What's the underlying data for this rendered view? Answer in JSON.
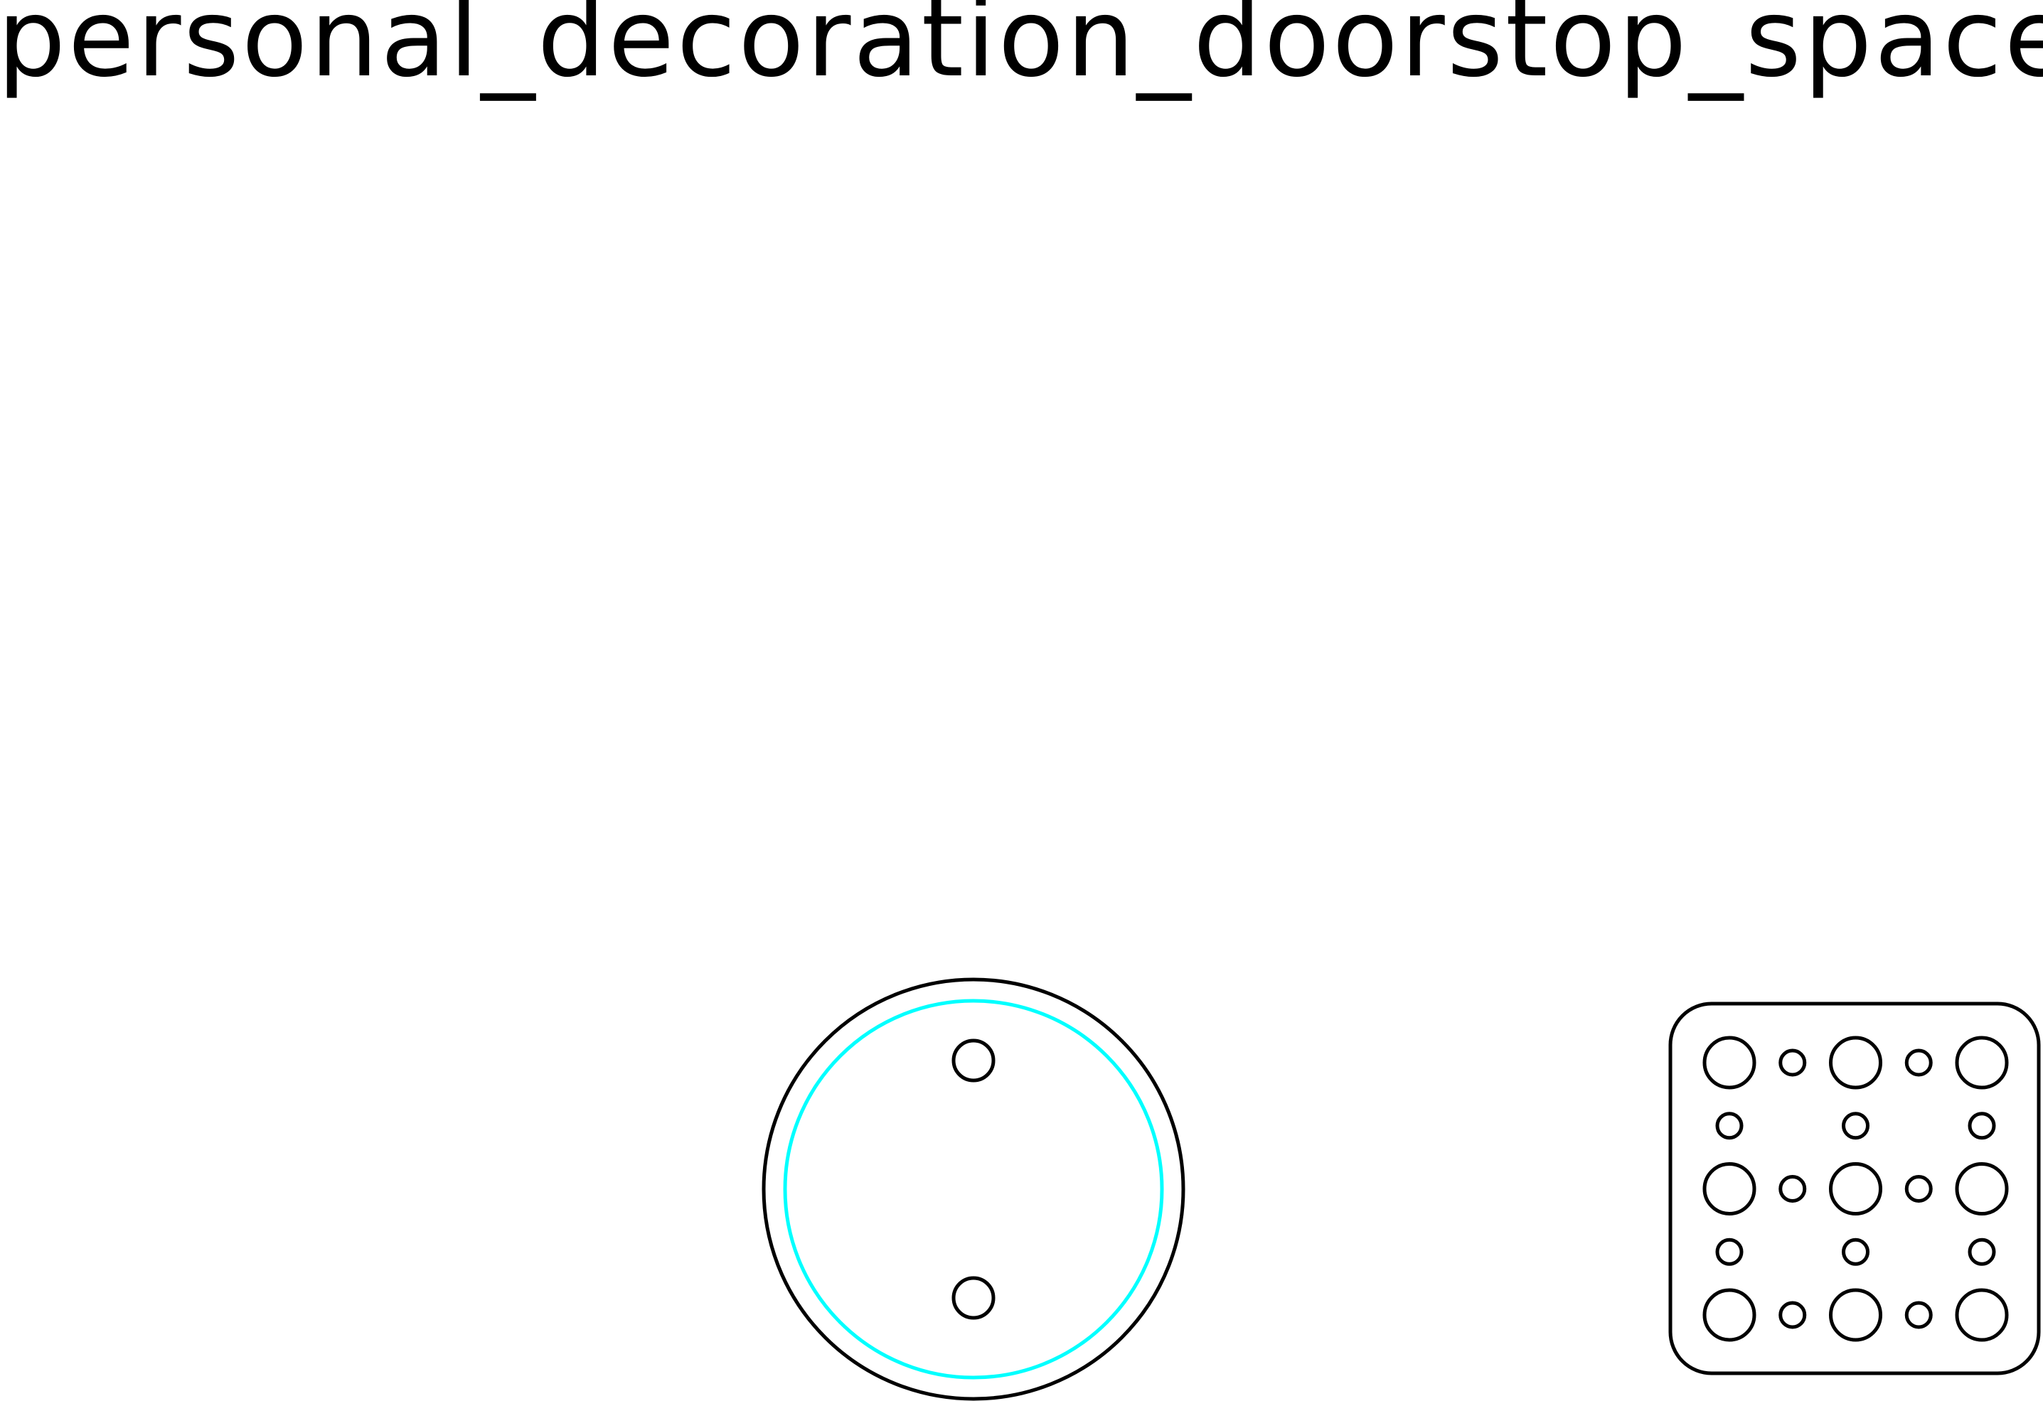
{
  "title": "personal_decoration_doorstop_spacer",
  "colors": {
    "outline": "#000000",
    "inner_ring": "#00ffff",
    "background": "#ffffff"
  },
  "parts": {
    "round_spacer": {
      "label": "",
      "hole_count": 2,
      "has_inner_ring": true
    },
    "square_plate": {
      "label": "",
      "hole_grid": [
        [
          "large",
          "small",
          "large",
          "small",
          "large"
        ],
        [
          "small",
          "none",
          "small",
          "none",
          "small"
        ],
        [
          "large",
          "small",
          "large",
          "small",
          "large"
        ],
        [
          "small",
          "none",
          "small",
          "none",
          "small"
        ],
        [
          "large",
          "small",
          "large",
          "small",
          "large"
        ]
      ]
    }
  }
}
